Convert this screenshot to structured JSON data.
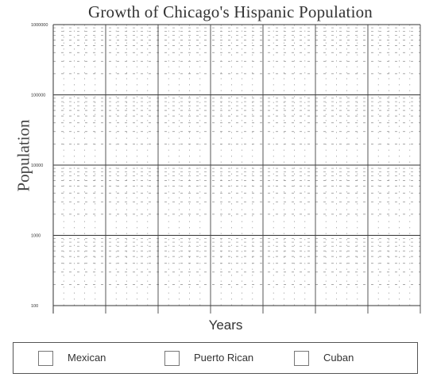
{
  "chart_data": {
    "type": "line",
    "title": "Growth of Chicago's Hispanic Population",
    "xlabel": "Years",
    "ylabel": "Population",
    "yscale": "log",
    "ylim": [
      100,
      1000000
    ],
    "yticks": [
      100,
      1000,
      10000,
      100000,
      1000000
    ],
    "ytick_labels": [
      "100",
      "1000",
      "10000",
      "100000",
      "1000000"
    ],
    "x_major_columns": 7,
    "grid": true,
    "legend_position": "bottom",
    "series": [
      {
        "name": "Mexican",
        "values": []
      },
      {
        "name": "Puerto Rican",
        "values": []
      },
      {
        "name": "Cuban",
        "values": []
      }
    ]
  }
}
